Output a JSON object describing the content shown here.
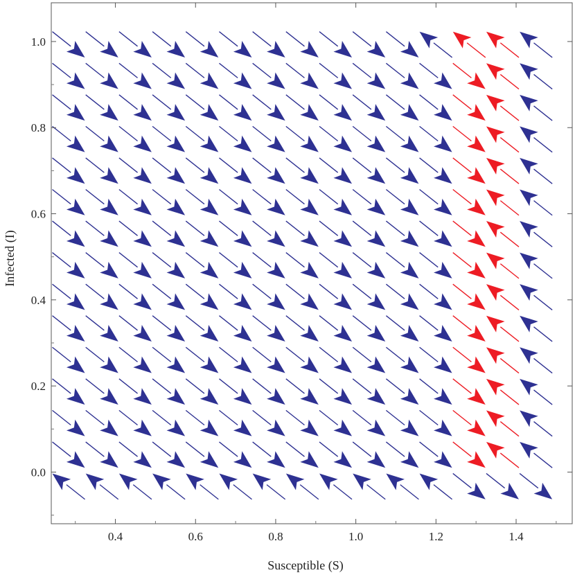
{
  "chart_data": {
    "type": "vector_field",
    "title": "",
    "xlabel": "Susceptible (S)",
    "ylabel": "Infected (I)",
    "xlim": [
      0.24,
      1.54
    ],
    "ylim": [
      -0.12,
      1.09
    ],
    "xticks": [
      0.4,
      0.6,
      0.8,
      1.0,
      1.2,
      1.4
    ],
    "xtick_labels": [
      "0.4",
      "0.6",
      "0.8",
      "1.0",
      "1.2",
      "1.4"
    ],
    "yticks": [
      0.0,
      0.2,
      0.4,
      0.6,
      0.8,
      1.0
    ],
    "ytick_labels": [
      "0.0",
      "0.2",
      "0.4",
      "0.6",
      "0.8",
      "1.0"
    ],
    "grid": false,
    "legend": "none",
    "colors": {
      "default": "#2e3192",
      "highlight": "#ed1c24"
    },
    "field": {
      "x_start": 0.2833,
      "x_step": 0.0833,
      "x_count": 15,
      "y_start": -0.0333,
      "y_step": 0.0733,
      "y_count": 15,
      "highlight_columns": [
        12,
        13
      ],
      "row_dir_sign": [
        [
          -1,
          -1,
          -1,
          -1,
          -1,
          -1,
          -1,
          -1,
          -1,
          -1,
          -1,
          -1,
          1,
          1,
          1
        ],
        [
          1,
          1,
          1,
          1,
          1,
          1,
          1,
          1,
          1,
          1,
          1,
          1,
          1,
          -1,
          -1
        ],
        [
          1,
          1,
          1,
          1,
          1,
          1,
          1,
          1,
          1,
          1,
          1,
          1,
          1,
          -1,
          -1
        ],
        [
          1,
          1,
          1,
          1,
          1,
          1,
          1,
          1,
          1,
          1,
          1,
          1,
          1,
          -1,
          -1
        ],
        [
          1,
          1,
          1,
          1,
          1,
          1,
          1,
          1,
          1,
          1,
          1,
          1,
          1,
          -1,
          -1
        ],
        [
          1,
          1,
          1,
          1,
          1,
          1,
          1,
          1,
          1,
          1,
          1,
          1,
          1,
          -1,
          -1
        ],
        [
          1,
          1,
          1,
          1,
          1,
          1,
          1,
          1,
          1,
          1,
          1,
          1,
          1,
          -1,
          -1
        ],
        [
          1,
          1,
          1,
          1,
          1,
          1,
          1,
          1,
          1,
          1,
          1,
          1,
          1,
          -1,
          -1
        ],
        [
          1,
          1,
          1,
          1,
          1,
          1,
          1,
          1,
          1,
          1,
          1,
          1,
          1,
          -1,
          -1
        ],
        [
          1,
          1,
          1,
          1,
          1,
          1,
          1,
          1,
          1,
          1,
          1,
          1,
          1,
          -1,
          -1
        ],
        [
          1,
          1,
          1,
          1,
          1,
          1,
          1,
          1,
          1,
          1,
          1,
          1,
          1,
          -1,
          -1
        ],
        [
          1,
          1,
          1,
          1,
          1,
          1,
          1,
          1,
          1,
          1,
          1,
          1,
          1,
          -1,
          -1
        ],
        [
          1,
          1,
          1,
          1,
          1,
          1,
          1,
          1,
          1,
          1,
          1,
          1,
          1,
          -1,
          -1
        ],
        [
          1,
          1,
          1,
          1,
          1,
          1,
          1,
          1,
          1,
          1,
          1,
          1,
          1,
          -1,
          -1
        ],
        [
          1,
          1,
          1,
          1,
          1,
          1,
          1,
          1,
          1,
          1,
          1,
          -1,
          -1,
          -1,
          -1
        ]
      ]
    }
  }
}
